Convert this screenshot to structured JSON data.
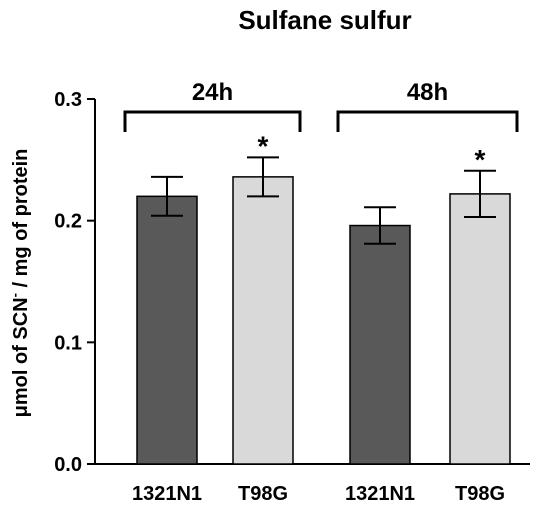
{
  "chart_data": {
    "type": "bar",
    "title": "Sulfane sulfur",
    "ylabel_main": "μmol of SCN",
    "ylabel_sup": "-",
    "ylabel_rest": " / mg of protein",
    "xlabel": "",
    "ylim": [
      0,
      0.3
    ],
    "yticks": [
      "0.0",
      "0.1",
      "0.2",
      "0.3"
    ],
    "grid": false,
    "groups": [
      {
        "label": "24h",
        "bars": [
          {
            "category": "1321N1",
            "value": 0.22,
            "error": 0.016,
            "color": "#595959",
            "significance": ""
          },
          {
            "category": "T98G",
            "value": 0.236,
            "error": 0.016,
            "color": "#d9d9d9",
            "significance": "*"
          }
        ]
      },
      {
        "label": "48h",
        "bars": [
          {
            "category": "1321N1",
            "value": 0.196,
            "error": 0.015,
            "color": "#595959",
            "significance": ""
          },
          {
            "category": "T98G",
            "value": 0.222,
            "error": 0.019,
            "color": "#d9d9d9",
            "significance": "*"
          }
        ]
      }
    ]
  }
}
